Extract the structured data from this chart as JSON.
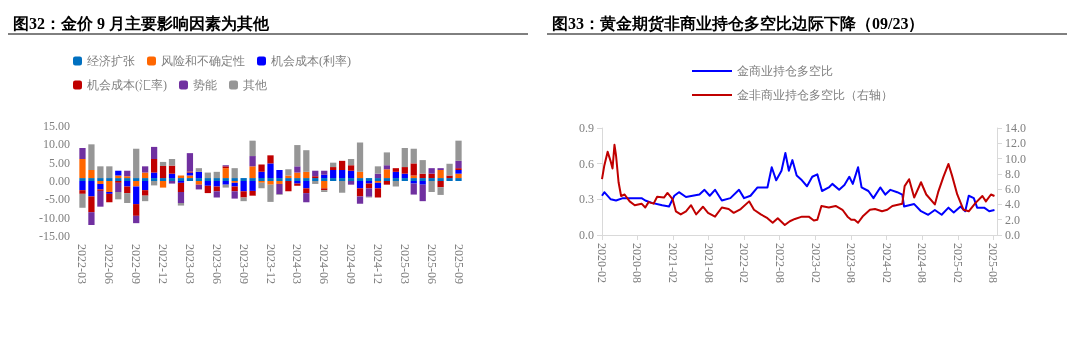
{
  "chart_data": [
    {
      "type": "bar",
      "title": "图32：金价 9 月主要影响因素为其他",
      "stacked": true,
      "legend": "top",
      "grid": false,
      "categories": [
        "2022-03",
        null,
        null,
        "2022-06",
        null,
        null,
        "2022-09",
        null,
        null,
        "2022-12",
        null,
        null,
        "2023-03",
        null,
        null,
        "2023-06",
        null,
        null,
        "2023-09",
        null,
        null,
        "2023-12",
        null,
        null,
        "2024-03",
        null,
        null,
        "2024-06",
        null,
        null,
        "2024-09",
        null,
        null,
        "2024-12",
        null,
        null,
        "2025-03",
        null,
        null,
        "2025-06",
        null,
        null,
        "2025-09"
      ],
      "ylim": [
        -15,
        15
      ],
      "yticks": [
        {
          "value": -15,
          "label": "-15.00"
        },
        {
          "value": -10,
          "label": "-10.00"
        },
        {
          "value": -5,
          "label": "-5.00"
        },
        {
          "value": 0,
          "label": "0.00"
        },
        {
          "value": 5,
          "label": "5.00"
        },
        {
          "value": 10,
          "label": "10.00"
        },
        {
          "value": 15,
          "label": "15.00"
        }
      ],
      "series": [
        {
          "name": "经济扩张",
          "color": "#0070c0",
          "values": [
            0.8,
            0.8,
            0.8,
            0.8,
            0.8,
            0.8,
            0.8,
            0.8,
            0.8,
            0.8,
            0.8,
            0.8,
            0.8,
            0.8,
            0.8,
            0.8,
            0.8,
            0.8,
            0.8,
            0.8,
            0.8,
            0.8,
            0.8,
            0.8,
            0.8,
            0.8,
            0.8,
            0.8,
            0.8,
            0.8,
            0.8,
            0.8,
            0.8,
            0.8,
            0.8,
            0.8,
            0.8,
            0.8,
            0.8,
            0.8,
            0.8,
            0.8,
            0.8
          ]
        },
        {
          "name": "风险和不确定性",
          "color": "#ff6600",
          "values": [
            5.2,
            2.2,
            -0.8,
            -3,
            0.7,
            0.5,
            -1.5,
            1.5,
            null,
            -1.8,
            null,
            0.7,
            0.7,
            -1,
            null,
            null,
            2.7,
            -0.5,
            null,
            3.2,
            -0.5,
            -1,
            -0.8,
            0.7,
            1.5,
            1.7,
            null,
            -2,
            null,
            null,
            null,
            1.7,
            null,
            -0.5,
            2.4,
            null,
            null,
            0.7,
            null,
            null,
            2.2,
            null,
            1.2
          ]
        },
        {
          "name": "机会成本(利率)",
          "color": "#0000ff",
          "values": [
            -2.5,
            -4.2,
            -1.5,
            -0.5,
            1.3,
            -1.5,
            -4.8,
            -2.5,
            1.5,
            null,
            1.2,
            -0.5,
            0.8,
            1.7,
            -1.3,
            -1.5,
            -1,
            -1,
            -2.8,
            -2.7,
            1.7,
            4,
            2.2,
            null,
            -0.7,
            -2,
            null,
            0.9,
            2.2,
            2.2,
            2,
            -2,
            -0.7,
            -1.5,
            null,
            1.7,
            1.2,
            -0.7,
            -1,
            null,
            null,
            null,
            1
          ]
        },
        {
          "name": "机会成本(汇率)",
          "color": "#c00000",
          "values": [
            -1,
            -4.3,
            -0.4,
            -2.3,
            -0.5,
            -1.8,
            -3.2,
            -1.5,
            3.7,
            3.3,
            2.2,
            -2.5,
            0.3,
            null,
            -2,
            -1.3,
            0.5,
            -1.3,
            -1.7,
            -1.3,
            2,
            2.2,
            null,
            -2.8,
            -0.6,
            -1.3,
            0.5,
            -0.5,
            0.8,
            2.5,
            1.5,
            -2.2,
            -1.3,
            -2.5,
            -1,
            1,
            1.8,
            3.3,
            1.2,
            1.2,
            -1.7,
            0.7,
            0.5
          ]
        },
        {
          "name": "势能",
          "color": "#7030a0",
          "values": [
            3,
            -3.5,
            -4.3,
            null,
            -2.5,
            1.5,
            -2,
            1.7,
            3.3,
            null,
            -0.7,
            -3,
            5,
            -1.3,
            null,
            -1.7,
            0.3,
            -2,
            null,
            2.8,
            null,
            null,
            -2.8,
            null,
            1.7,
            -2.5,
            1.5,
            1.1,
            null,
            null,
            -1,
            -2,
            -2.3,
            1.2,
            1.1,
            null,
            null,
            -3,
            -4.5,
            1.5,
            0.5,
            null,
            2
          ]
        },
        {
          "name": "其他",
          "color": "#969696",
          "values": [
            -3.8,
            7,
            3.2,
            3.2,
            -2,
            -2.7,
            8,
            -1.5,
            -1.2,
            1.1,
            1.8,
            -0.7,
            null,
            1,
            1.5,
            1.7,
            -0.8,
            2.7,
            -1,
            4.2,
            -1.5,
            -4.7,
            -0.2,
            1.7,
            5.8,
            5.9,
            -0.8,
            -0.5,
            1.2,
            -3.2,
            1.7,
            8,
            -0.2,
            2,
            3.5,
            -1.5,
            5.2,
            4,
            3.7,
            -3,
            -2.1,
            3.2,
            5.5
          ]
        }
      ]
    },
    {
      "type": "line",
      "title": "图33：黄金期货非商业持仓多空比边际下降（09/23）",
      "legend": "top",
      "grid": false,
      "marker": "none",
      "xlim": [
        "2020-02-01",
        "2025-08-20"
      ],
      "xticks": [
        "2020-02",
        "2020-08",
        "2021-02",
        "2021-08",
        "2022-02",
        "2022-08",
        "2023-02",
        "2023-08",
        "2024-02",
        "2024-08",
        "2025-02",
        "2025-08"
      ],
      "ylim": [
        0,
        0.9
      ],
      "yticks": [
        {
          "value": 0,
          "label": "0.0"
        },
        0.3,
        0.6,
        0.9
      ],
      "y2lim": [
        0,
        14
      ],
      "y2ticks": [
        {
          "value": 0,
          "label": "0.0"
        },
        {
          "value": 2,
          "label": "2.0"
        },
        {
          "value": 4,
          "label": "4.0"
        },
        {
          "value": 6,
          "label": "6.0"
        },
        {
          "value": 8,
          "label": "8.0"
        },
        {
          "value": 10,
          "label": "10.0"
        },
        {
          "value": 12,
          "label": "12.0"
        },
        {
          "value": 14,
          "label": "14.0"
        }
      ],
      "series": [
        {
          "name": "金商业持仓多空比",
          "color": "#0000ff",
          "x": [
            "2020-02-01",
            "2020-02-13",
            "2020-03-17",
            "2020-04-13",
            "2020-05-18",
            "2020-07-01",
            "2020-08-22",
            "2020-09-10",
            "2020-10-14",
            "2020-12-06",
            "2021-01-10",
            "2021-02-06",
            "2021-03-02",
            "2021-04-07",
            "2021-05-11",
            "2021-06-15",
            "2021-07-11",
            "2021-08-07",
            "2021-09-03",
            "2021-10-08",
            "2021-11-21",
            "2022-01-04",
            "2022-01-30",
            "2022-03-04",
            "2022-04-09",
            "2022-05-30",
            "2022-06-21",
            "2022-07-14",
            "2022-08-10",
            "2022-08-30",
            "2022-09-17",
            "2022-10-05",
            "2022-10-27",
            "2022-11-23",
            "2022-12-19",
            "2023-01-15",
            "2023-02-10",
            "2023-03-06",
            "2023-04-10",
            "2023-04-28",
            "2023-06-02",
            "2023-06-29",
            "2023-07-24",
            "2023-08-11",
            "2023-09-07",
            "2023-09-25",
            "2023-10-30",
            "2023-11-25",
            "2023-12-30",
            "2024-01-25",
            "2024-02-20",
            "2024-03-26",
            "2024-04-21",
            "2024-04-30",
            "2024-06-21",
            "2024-07-26",
            "2024-09-01",
            "2024-10-05",
            "2024-11-09",
            "2024-12-14",
            "2025-01-10",
            "2025-02-14",
            "2025-03-10",
            "2025-03-28",
            "2025-04-23",
            "2025-05-10",
            "2025-06-15",
            "2025-07-11",
            "2025-08-07"
          ],
          "values": [
            0.33,
            0.36,
            0.3,
            0.29,
            0.31,
            0.31,
            0.31,
            0.29,
            0.27,
            0.25,
            0.24,
            0.33,
            0.36,
            0.32,
            0.33,
            0.34,
            0.38,
            0.33,
            0.38,
            0.29,
            0.31,
            0.38,
            0.31,
            0.33,
            0.4,
            0.4,
            0.57,
            0.46,
            0.54,
            0.69,
            0.54,
            0.63,
            0.5,
            0.46,
            0.41,
            0.49,
            0.51,
            0.37,
            0.4,
            0.43,
            0.38,
            0.42,
            0.49,
            0.43,
            0.57,
            0.4,
            0.37,
            0.31,
            0.4,
            0.34,
            0.38,
            0.36,
            0.34,
            0.24,
            0.26,
            0.2,
            0.17,
            0.21,
            0.17,
            0.23,
            0.19,
            0.24,
            0.2,
            0.33,
            0.31,
            0.23,
            0.23,
            0.2,
            0.21
          ]
        },
        {
          "name": "金非商业持仓多空比（右轴）",
          "color": "#c00000",
          "axis": "y2",
          "x": [
            "2020-02-01",
            "2020-02-13",
            "2020-03-01",
            "2020-03-17",
            "2020-03-26",
            "2020-04-05",
            "2020-04-13",
            "2020-04-26",
            "2020-05-09",
            "2020-05-27",
            "2020-06-22",
            "2020-07-18",
            "2020-08-22",
            "2020-09-10",
            "2020-09-27",
            "2020-10-23",
            "2020-11-10",
            "2020-12-15",
            "2021-01-02",
            "2021-01-28",
            "2021-02-14",
            "2021-03-11",
            "2021-04-07",
            "2021-05-03",
            "2021-05-29",
            "2021-07-03",
            "2021-07-29",
            "2021-09-03",
            "2021-10-08",
            "2021-11-12",
            "2021-12-08",
            "2022-01-13",
            "2022-02-25",
            "2022-03-22",
            "2022-04-26",
            "2022-05-30",
            "2022-06-26",
            "2022-07-22",
            "2022-08-27",
            "2022-09-22",
            "2022-10-18",
            "2022-11-23",
            "2022-12-28",
            "2023-01-23",
            "2023-02-10",
            "2023-03-03",
            "2023-04-10",
            "2023-05-15",
            "2023-06-19",
            "2023-07-15",
            "2023-08-03",
            "2023-08-20",
            "2023-09-07",
            "2023-10-03",
            "2023-11-07",
            "2023-12-03",
            "2024-01-08",
            "2024-02-04",
            "2024-03-01",
            "2024-04-04",
            "2024-04-21",
            "2024-05-03",
            "2024-05-26",
            "2024-06-21",
            "2024-07-26",
            "2024-08-22",
            "2024-10-05",
            "2024-10-22",
            "2024-11-18",
            "2024-12-14",
            "2025-01-01",
            "2025-01-28",
            "2025-03-01",
            "2025-03-28",
            "2025-05-02",
            "2025-06-06",
            "2025-06-24",
            "2025-07-20",
            "2025-08-07"
          ],
          "values": [
            7.3,
            9.1,
            10.9,
            9.6,
            8.7,
            11.8,
            10.4,
            6.9,
            5.1,
            5.3,
            4.4,
            3.9,
            4.1,
            3.6,
            4.3,
            4.1,
            5.0,
            4.9,
            5.5,
            4.7,
            3.1,
            2.7,
            3.1,
            3.9,
            2.7,
            3.7,
            2.9,
            2.4,
            3.6,
            3.4,
            2.9,
            3.4,
            4.4,
            3.3,
            2.7,
            2.2,
            1.6,
            2.2,
            1.3,
            1.8,
            2.1,
            2.4,
            2.4,
            1.9,
            2.0,
            3.8,
            3.6,
            3.8,
            3.3,
            2.4,
            2.0,
            2.0,
            1.6,
            2.5,
            3.3,
            3.4,
            3.1,
            3.3,
            3.8,
            4.0,
            4.1,
            6.4,
            7.3,
            4.9,
            6.9,
            5.3,
            4.0,
            5.6,
            7.6,
            9.3,
            7.8,
            5.3,
            3.3,
            3.1,
            4.2,
            5.1,
            4.4,
            5.3,
            5.1
          ]
        }
      ]
    }
  ]
}
